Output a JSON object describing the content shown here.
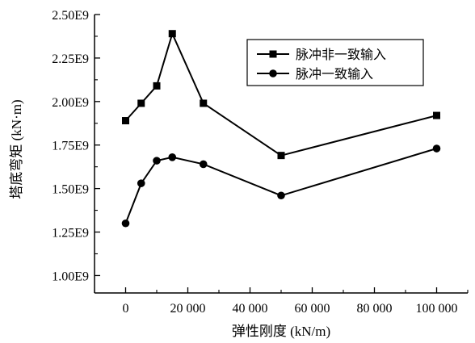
{
  "chart_data": {
    "type": "line",
    "xlabel": "弹性刚度 (kN/m)",
    "ylabel": "塔底弯矩 (kN·m)",
    "xlim": [
      -10000,
      110000
    ],
    "ylim": [
      900000000.0,
      2500000000.0
    ],
    "x_ticks": [
      0,
      20000,
      40000,
      60000,
      80000,
      100000
    ],
    "x_tick_labels": [
      "0",
      "20 000",
      "40 000",
      "60 000",
      "80 000",
      "100 000"
    ],
    "y_ticks": [
      1000000000.0,
      1250000000.0,
      1500000000.0,
      1750000000.0,
      2000000000.0,
      2250000000.0,
      2500000000.0
    ],
    "y_tick_labels": [
      "1.00E9",
      "1.25E9",
      "1.50E9",
      "1.75E9",
      "2.00E9",
      "2.25E9",
      "2.50E9"
    ],
    "legend_position": "top-right",
    "grid": false,
    "series": [
      {
        "name": "脉冲非一致输入",
        "marker": "square",
        "x": [
          0,
          5000,
          10000,
          15000,
          25000,
          50000,
          100000
        ],
        "y": [
          1890000000.0,
          1990000000.0,
          2090000000.0,
          2390000000.0,
          1990000000.0,
          1690000000.0,
          1920000000.0
        ]
      },
      {
        "name": "脉冲一致输入",
        "marker": "circle",
        "x": [
          0,
          5000,
          10000,
          15000,
          25000,
          50000,
          100000
        ],
        "y": [
          1300000000.0,
          1530000000.0,
          1660000000.0,
          1680000000.0,
          1640000000.0,
          1460000000.0,
          1730000000.0
        ]
      }
    ]
  }
}
